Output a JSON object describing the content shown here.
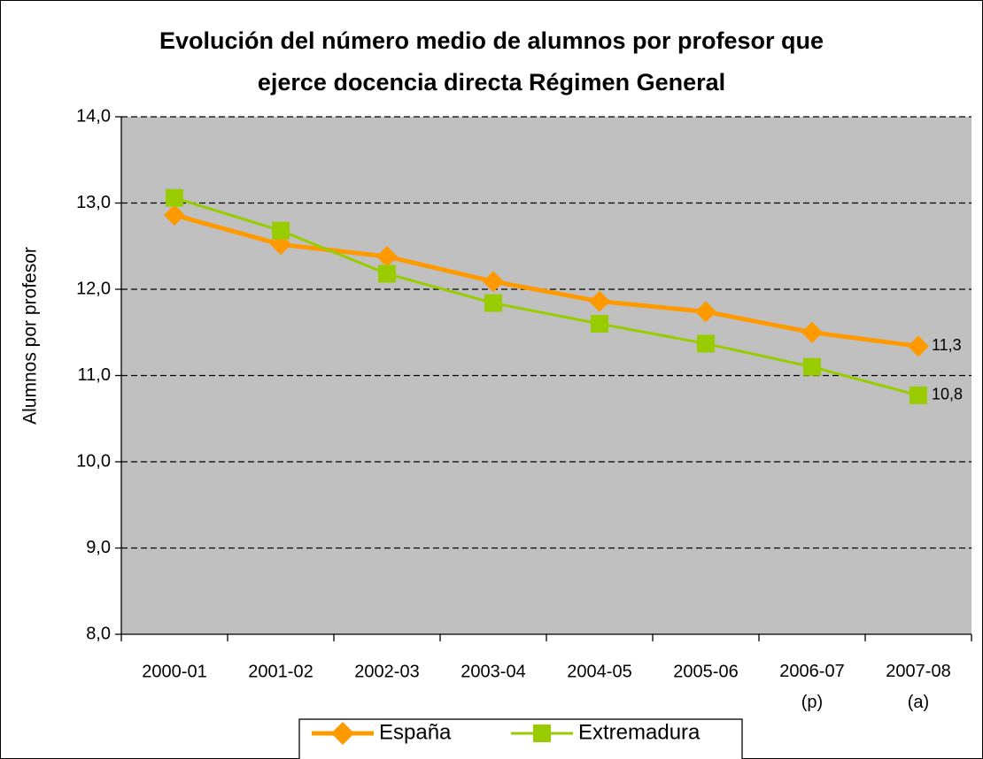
{
  "chart_data": {
    "type": "line",
    "title": [
      "Evolución del número medio de alumnos por profesor que",
      "ejerce docencia directa Régimen General"
    ],
    "y_label": "Alumnos por profesor",
    "categories": [
      "2000-01",
      "2001-02",
      "2002-03",
      "2003-04",
      "2004-05",
      "2005-06",
      "2006-07\n(p)",
      "2007-08\n(a)"
    ],
    "series": [
      {
        "name": "España",
        "color": "#ff9900",
        "marker": "diamond",
        "values": [
          12.86,
          12.52,
          12.38,
          12.09,
          11.86,
          11.74,
          11.5,
          11.34
        ],
        "value_labels": [
          null,
          null,
          null,
          null,
          null,
          null,
          null,
          "11,3"
        ]
      },
      {
        "name": "Extremadura",
        "color": "#99cc00",
        "marker": "square",
        "values": [
          13.06,
          12.68,
          12.18,
          11.84,
          11.6,
          11.37,
          11.1,
          10.77
        ],
        "value_labels": [
          null,
          null,
          null,
          null,
          null,
          null,
          null,
          "10,8"
        ]
      }
    ],
    "ylim": [
      8,
      14
    ],
    "yticks": [
      {
        "value": 8,
        "label": "8,0"
      },
      {
        "value": 9,
        "label": "9,0"
      },
      {
        "value": 10,
        "label": "10,0"
      },
      {
        "value": 11,
        "label": "11,0"
      },
      {
        "value": 12,
        "label": "12,0"
      },
      {
        "value": 13,
        "label": "13,0"
      },
      {
        "value": 14,
        "label": "14,0"
      }
    ],
    "grid": true
  }
}
